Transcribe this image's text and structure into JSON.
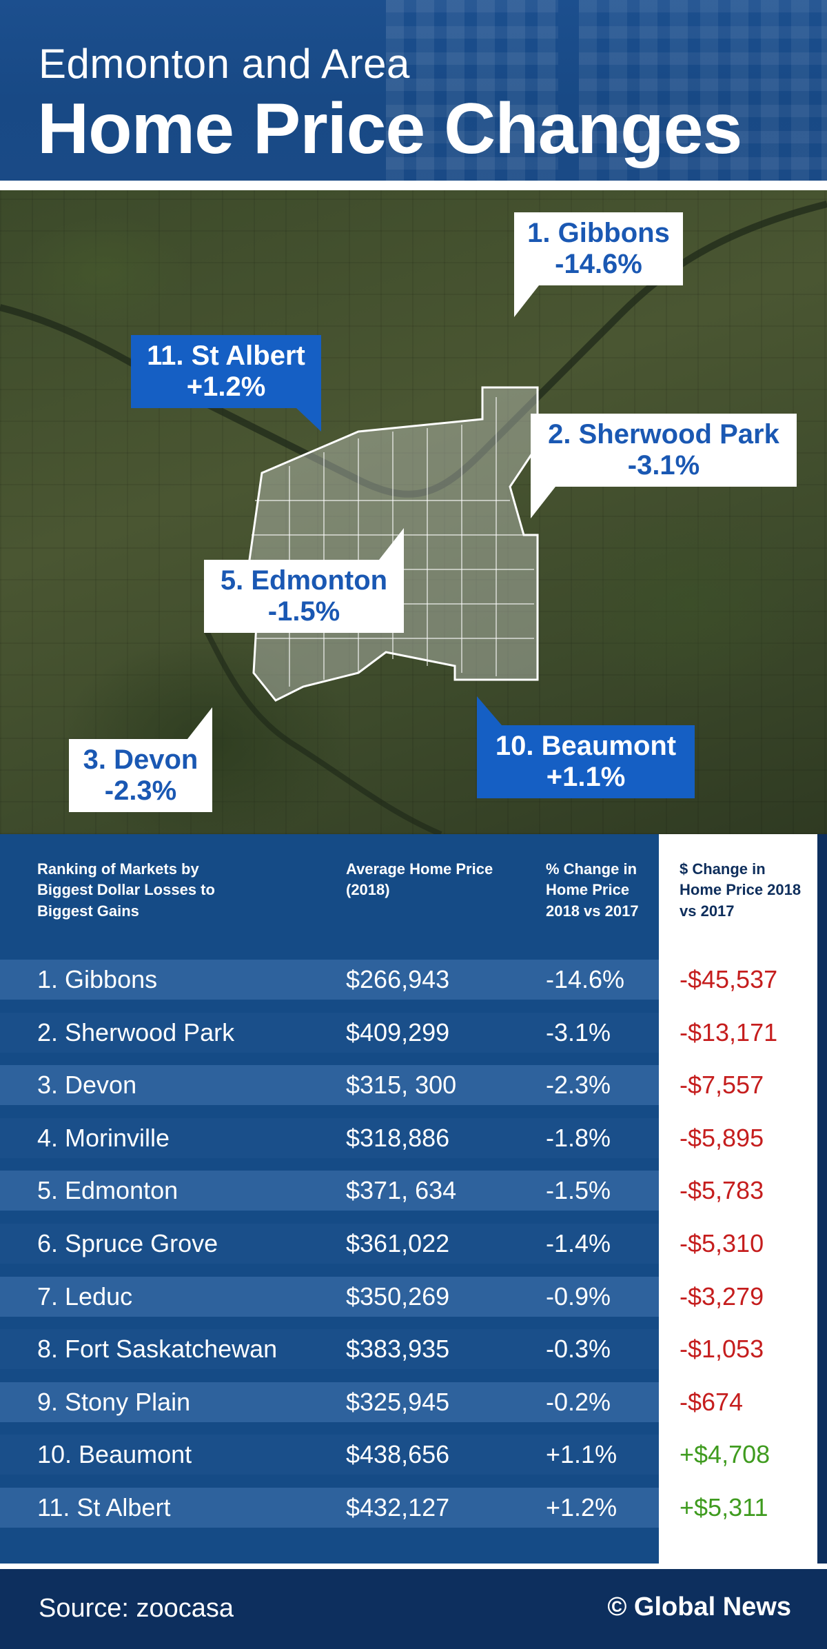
{
  "header": {
    "subtitle": "Edmonton and Area",
    "title": "Home Price Changes"
  },
  "map_callouts": [
    {
      "name": "1. Gibbons",
      "change": "-14.6%"
    },
    {
      "name": "11. St Albert",
      "change": "+1.2%"
    },
    {
      "name": "2. Sherwood Park",
      "change": "-3.1%"
    },
    {
      "name": "5. Edmonton",
      "change": "-1.5%"
    },
    {
      "name": "3. Devon",
      "change": "-2.3%"
    },
    {
      "name": "10. Beaumont",
      "change": "+1.1%"
    }
  ],
  "table": {
    "headers": {
      "ranking": "Ranking of Markets by Biggest Dollar Losses to Biggest Gains",
      "avg_price": "Average Home Price (2018)",
      "pct_change": "% Change in Home Price 2018 vs 2017",
      "dollar_change": "$ Change in Home Price 2018 vs 2017"
    },
    "rows": [
      {
        "market": "1. Gibbons",
        "price": "$266,943",
        "pct": "-14.6%",
        "dollar": "-$45,537"
      },
      {
        "market": "2. Sherwood Park",
        "price": "$409,299",
        "pct": "-3.1%",
        "dollar": "-$13,171"
      },
      {
        "market": "3. Devon",
        "price": "$315, 300",
        "pct": "-2.3%",
        "dollar": "-$7,557"
      },
      {
        "market": "4. Morinville",
        "price": "$318,886",
        "pct": "-1.8%",
        "dollar": "-$5,895"
      },
      {
        "market": "5. Edmonton",
        "price": "$371, 634",
        "pct": "-1.5%",
        "dollar": "-$5,783"
      },
      {
        "market": "6. Spruce Grove",
        "price": "$361,022",
        "pct": "-1.4%",
        "dollar": "-$5,310"
      },
      {
        "market": "7. Leduc",
        "price": "$350,269",
        "pct": "-0.9%",
        "dollar": "-$3,279"
      },
      {
        "market": "8. Fort Saskatchewan",
        "price": "$383,935",
        "pct": "-0.3%",
        "dollar": "-$1,053"
      },
      {
        "market": "9. Stony Plain",
        "price": "$325,945",
        "pct": "-0.2%",
        "dollar": "-$674"
      },
      {
        "market": "10. Beaumont",
        "price": "$438,656",
        "pct": "+1.1%",
        "dollar": "+$4,708"
      },
      {
        "market": "11. St Albert",
        "price": "$432,127",
        "pct": "+1.2%",
        "dollar": "+$5,311"
      }
    ]
  },
  "colors": {
    "negative": "#c51d1d",
    "positive": "#3f9b1f",
    "callout_blue": "#155fc4",
    "callout_text_blue": "#1a58b3"
  },
  "footer": {
    "source": "Source: zoocasa",
    "credit": "© Global News"
  }
}
